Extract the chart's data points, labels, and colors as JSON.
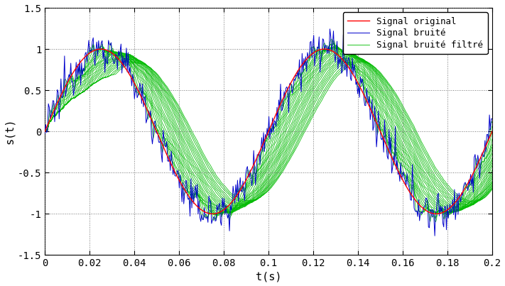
{
  "title": "",
  "xlabel": "t(s)",
  "ylabel": "s(t)",
  "xlim": [
    0,
    0.2
  ],
  "ylim": [
    -1.5,
    1.5
  ],
  "frequency": 10,
  "amplitude": 1.0,
  "noise_amplitude": 0.12,
  "num_samples": 500,
  "num_filter_curves": 25,
  "min_window": 3,
  "max_window": 80,
  "color_original": "#ff0000",
  "color_noisy": "#0000cc",
  "color_filtered": "#00bb00",
  "legend_labels": [
    "Signal original",
    "Signal bruité",
    "Signal bruité filtré"
  ],
  "xticks": [
    0,
    0.02,
    0.04,
    0.06,
    0.08,
    0.1,
    0.12,
    0.14,
    0.16,
    0.18,
    0.2
  ],
  "yticks": [
    -1.5,
    -1.0,
    -0.5,
    0,
    0.5,
    1.0,
    1.5
  ],
  "lw_original": 1.0,
  "lw_noisy": 0.7,
  "lw_filtered": 0.6,
  "background_color": "#ffffff",
  "grid_color": "#666666",
  "font_size_ticks": 10,
  "font_size_labels": 11,
  "font_size_legend": 9
}
